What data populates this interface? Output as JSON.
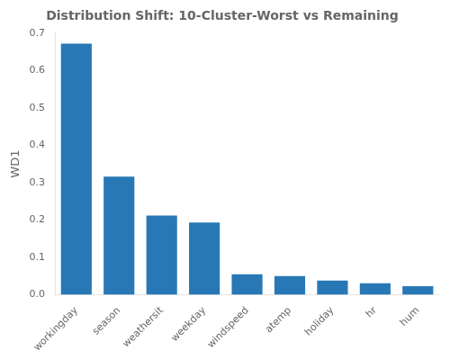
{
  "chart_data": {
    "type": "bar",
    "title": "Distribution Shift: 10-Cluster-Worst vs Remaining",
    "ylabel": "WD1",
    "categories": [
      "workingday",
      "season",
      "weathersit",
      "weekday",
      "windspeed",
      "atemp",
      "holiday",
      "hr",
      "hum"
    ],
    "values": [
      0.672,
      0.316,
      0.212,
      0.193,
      0.055,
      0.05,
      0.038,
      0.031,
      0.023
    ],
    "color": "#2878b5",
    "ylim": [
      0,
      0.7
    ],
    "yticks": [
      {
        "value": 0,
        "label": "0.0"
      },
      0.1,
      0.2,
      0.3,
      0.4,
      0.5,
      0.6,
      0.7
    ],
    "grid": false
  }
}
